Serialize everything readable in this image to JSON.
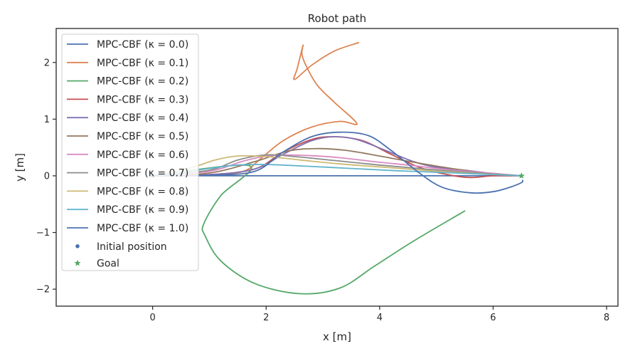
{
  "chart_data": {
    "type": "line",
    "title": "Robot path",
    "xlabel": "x [m]",
    "ylabel": "y [m]",
    "xlim": [
      -1.7,
      8.2
    ],
    "ylim": [
      -2.3,
      2.6
    ],
    "xticks": [
      0,
      2,
      4,
      6,
      8
    ],
    "yticks": [
      -2,
      -1,
      0,
      1,
      2
    ],
    "xtick_labels": [
      "0",
      "2",
      "4",
      "6",
      "8"
    ],
    "ytick_labels": [
      "−2",
      "−1",
      "0",
      "1",
      "2"
    ],
    "grid": false,
    "legend_position": "upper-left",
    "series": [
      {
        "name": "MPC-CBF (κ = 0.0)",
        "color": "#4c72b0",
        "x": [
          0,
          1,
          2,
          3,
          4,
          5,
          6,
          6.5
        ],
        "y": [
          0,
          0,
          0,
          0,
          0,
          0,
          0,
          0
        ]
      },
      {
        "name": "MPC-CBF (κ = 0.1)",
        "color": "#dd8452",
        "x": [
          0,
          1,
          1.6,
          1.9,
          2.3,
          2.8,
          3.3,
          3.6,
          3.2,
          2.9,
          2.7,
          2.63,
          2.65,
          2.55,
          2.5,
          2.8,
          3.2,
          3.63
        ],
        "y": [
          0,
          0.02,
          0.08,
          0.3,
          0.62,
          0.86,
          0.96,
          0.92,
          1.3,
          1.6,
          1.95,
          2.15,
          2.3,
          1.9,
          1.7,
          1.95,
          2.2,
          2.35
        ]
      },
      {
        "name": "MPC-CBF (κ = 0.2)",
        "color": "#55a868",
        "x": [
          0,
          1.7,
          1.2,
          0.9,
          0.92,
          1.2,
          1.8,
          2.6,
          3.3,
          3.9,
          4.6,
          5.5
        ],
        "y": [
          0,
          0.18,
          -0.35,
          -0.85,
          -1.05,
          -1.5,
          -1.9,
          -2.08,
          -1.98,
          -1.6,
          -1.15,
          -0.62
        ]
      },
      {
        "name": "MPC-CBF (κ = 0.3)",
        "color": "#c44e52",
        "x": [
          0,
          1,
          1.8,
          2.3,
          2.8,
          3.2,
          3.7,
          4.2,
          4.7,
          5.2,
          5.6,
          6.0,
          6.5
        ],
        "y": [
          0,
          0.02,
          0.12,
          0.42,
          0.64,
          0.69,
          0.62,
          0.38,
          0.15,
          0.02,
          -0.03,
          0.0,
          0.0
        ]
      },
      {
        "name": "MPC-CBF (κ = 0.4)",
        "color": "#8172b3",
        "x": [
          0,
          1,
          1.8,
          2.3,
          2.8,
          3.2,
          3.6,
          4.1,
          4.6,
          5.0,
          5.5,
          6.0,
          6.5
        ],
        "y": [
          0,
          0.02,
          0.12,
          0.38,
          0.62,
          0.69,
          0.64,
          0.45,
          0.25,
          0.15,
          0.1,
          0.04,
          0.0
        ]
      },
      {
        "name": "MPC-CBF (κ = 0.5)",
        "color": "#937860",
        "x": [
          0,
          1,
          1.8,
          2.4,
          2.9,
          3.4,
          4.0,
          4.6,
          5.2,
          5.8,
          6.5
        ],
        "y": [
          0,
          0.05,
          0.25,
          0.44,
          0.48,
          0.45,
          0.35,
          0.24,
          0.14,
          0.06,
          0.0
        ]
      },
      {
        "name": "MPC-CBF (κ = 0.6)",
        "color": "#da8bc3",
        "x": [
          0,
          1,
          1.6,
          2.1,
          2.7,
          3.3,
          3.9,
          4.5,
          5.1,
          5.8,
          6.5
        ],
        "y": [
          0,
          0.08,
          0.26,
          0.36,
          0.36,
          0.32,
          0.25,
          0.19,
          0.12,
          0.06,
          0.0
        ]
      },
      {
        "name": "MPC-CBF (κ = 0.7)",
        "color": "#8c8c8c",
        "x": [
          0,
          1,
          1.5,
          2.0,
          2.5,
          3.2,
          4.0,
          4.8,
          5.6,
          6.5
        ],
        "y": [
          0,
          0.1,
          0.28,
          0.37,
          0.34,
          0.27,
          0.19,
          0.12,
          0.06,
          0.0
        ]
      },
      {
        "name": "MPC-CBF (κ = 0.8)",
        "color": "#ccb974",
        "x": [
          0,
          0.7,
          1.1,
          1.5,
          2.0,
          2.6,
          3.3,
          4.1,
          4.9,
          5.7,
          6.5
        ],
        "y": [
          0,
          0.15,
          0.28,
          0.35,
          0.34,
          0.28,
          0.21,
          0.15,
          0.09,
          0.04,
          0.0
        ]
      },
      {
        "name": "MPC-CBF (κ = 0.9)",
        "color": "#64b5cd",
        "x": [
          0,
          0.5,
          1.0,
          1.5,
          2.0,
          2.7,
          3.5,
          4.3,
          5.1,
          5.8,
          6.5
        ],
        "y": [
          0,
          0.06,
          0.13,
          0.19,
          0.2,
          0.17,
          0.13,
          0.09,
          0.06,
          0.03,
          0.0
        ]
      },
      {
        "name": "MPC-CBF (κ = 1.0)",
        "color": "#4c72b0",
        "x": [
          0,
          1,
          1.8,
          2.3,
          2.8,
          3.3,
          3.8,
          4.2,
          4.7,
          5.1,
          5.6,
          6.0,
          6.3,
          6.5,
          6.52
        ],
        "y": [
          0,
          0.01,
          0.08,
          0.42,
          0.69,
          0.77,
          0.71,
          0.45,
          0.05,
          -0.2,
          -0.3,
          -0.28,
          -0.2,
          -0.12,
          -0.08
        ]
      }
    ],
    "markers": [
      {
        "name": "Initial position",
        "shape": "circle",
        "color": "#4c72b0",
        "x": 0,
        "y": 0
      },
      {
        "name": "Goal",
        "shape": "star",
        "color": "#55a868",
        "x": 6.5,
        "y": 0
      }
    ]
  }
}
